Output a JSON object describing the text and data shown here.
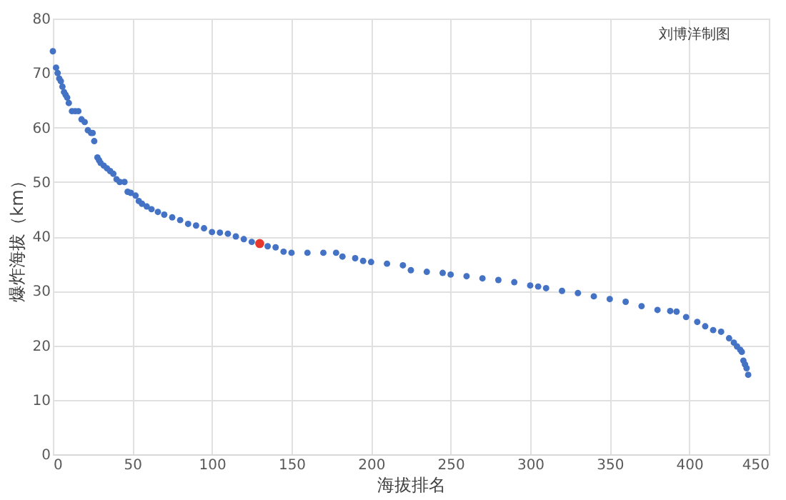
{
  "chart_data": {
    "type": "scatter",
    "xlabel": "海拔排名",
    "ylabel": "爆炸海拔（km）",
    "xlim": [
      0,
      450
    ],
    "xticks": [
      0,
      50,
      100,
      150,
      200,
      250,
      300,
      350,
      400,
      450
    ],
    "ylim": [
      0,
      80
    ],
    "yticks": [
      0,
      10,
      20,
      30,
      40,
      50,
      60,
      70,
      80
    ],
    "grid": true,
    "marker": "circle",
    "annotations": [
      "刘博洋制图"
    ],
    "series": [
      {
        "color": "#4472c4",
        "x": [
          0,
          2,
          3,
          4,
          5,
          6,
          7,
          8,
          9,
          10,
          12,
          14,
          16,
          18,
          20,
          22,
          24,
          25,
          26,
          28,
          29,
          30,
          32,
          34,
          36,
          38,
          40,
          42,
          45,
          47,
          49,
          52,
          54,
          56,
          59,
          62,
          66,
          70,
          75,
          80,
          85,
          90,
          95,
          100,
          105,
          110,
          115,
          120,
          125,
          135,
          140,
          145,
          150,
          160,
          170,
          178,
          182,
          190,
          195,
          200,
          210,
          220,
          225,
          235,
          245,
          250,
          260,
          270,
          280,
          290,
          300,
          305,
          310,
          320,
          330,
          340,
          350,
          360,
          370,
          380,
          388,
          392,
          398,
          405,
          410,
          415,
          420,
          425,
          428,
          430,
          432,
          433,
          434,
          435,
          436,
          437
        ],
        "values": [
          74,
          71,
          70,
          69,
          68.5,
          67.5,
          66.5,
          66,
          65.5,
          64.5,
          63,
          63,
          63,
          61.5,
          61,
          59.5,
          59,
          59,
          57.5,
          54.5,
          54,
          53.5,
          53,
          52.5,
          52,
          51.5,
          50.5,
          50,
          50,
          48.2,
          48,
          47.5,
          46.5,
          46,
          45.5,
          45,
          44.5,
          44,
          43.5,
          43,
          42.3,
          42,
          41.5,
          40.8,
          40.7,
          40.5,
          40,
          39.5,
          39,
          38.2,
          38,
          37.2,
          37,
          37,
          37,
          37,
          36.3,
          36,
          35.5,
          35.3,
          35,
          34.7,
          33.8,
          33.5,
          33.3,
          33,
          32.7,
          32.3,
          32,
          31.6,
          31,
          30.8,
          30.5,
          30,
          29.6,
          29,
          28.5,
          28,
          27.2,
          26.5,
          26.3,
          26.2,
          25.2,
          24.3,
          23.5,
          22.8,
          22.5,
          21.3,
          20.5,
          19.8,
          19.2,
          18.8,
          17.2,
          16.5,
          15.8,
          14.6
        ]
      },
      {
        "color": "#e8382c",
        "x": [
          130
        ],
        "values": [
          38.7
        ]
      }
    ]
  }
}
